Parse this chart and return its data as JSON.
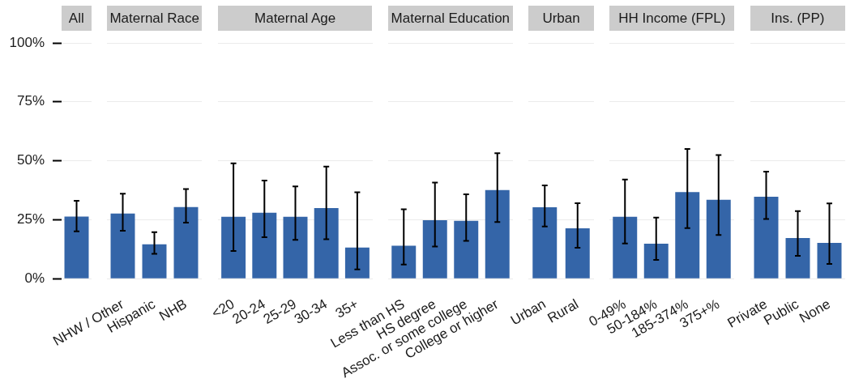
{
  "chart_data": [
    {
      "type": "bar",
      "title": "All",
      "categories": [
        null
      ],
      "values": [
        26.2
      ],
      "errors": [
        [
          20.0,
          33.0
        ]
      ],
      "color": "#3465a8",
      "ylim": [
        0,
        100
      ],
      "yticks": [
        {
          "value": 0,
          "label": "0%"
        },
        {
          "value": 25,
          "label": "25%"
        },
        {
          "value": 50,
          "label": "50%"
        },
        {
          "value": 75,
          "label": "75%"
        },
        {
          "value": 100,
          "label": "100%"
        }
      ],
      "grid": "y",
      "legend": false
    },
    {
      "type": "bar",
      "title": "Maternal Race",
      "categories": [
        "NHW / Other",
        "Hispanic",
        "NHB"
      ],
      "values": [
        27.5,
        14.4,
        30.2
      ],
      "errors": [
        [
          20.3,
          36.0
        ],
        [
          10.5,
          19.7
        ],
        [
          23.7,
          38.0
        ]
      ],
      "color": "#3465a8",
      "ylim": [
        0,
        100
      ],
      "yticks": [
        0,
        25,
        50,
        75,
        100
      ],
      "grid": "y",
      "legend": false,
      "tick_labels": "x"
    },
    {
      "type": "bar",
      "title": "Maternal Age",
      "categories": [
        "<20",
        "20-24",
        "25-29",
        "30-34",
        "35+"
      ],
      "values": [
        26.1,
        27.8,
        26.1,
        29.8,
        13.0
      ],
      "errors": [
        [
          11.7,
          48.9
        ],
        [
          17.5,
          41.6
        ],
        [
          16.4,
          39.1
        ],
        [
          16.7,
          47.5
        ],
        [
          3.9,
          36.6
        ]
      ],
      "color": "#3465a8",
      "ylim": [
        0,
        100
      ],
      "yticks": [
        0,
        25,
        50,
        75,
        100
      ],
      "grid": "y",
      "legend": false,
      "tick_labels": "x"
    },
    {
      "type": "bar",
      "title": "Maternal Education",
      "categories": [
        "Less than HS",
        "HS degree",
        "Assoc. or some college",
        "College or higher"
      ],
      "values": [
        13.8,
        24.6,
        24.4,
        37.4
      ],
      "errors": [
        [
          5.9,
          29.4
        ],
        [
          13.6,
          40.7
        ],
        [
          16.0,
          35.7
        ],
        [
          24.0,
          53.2
        ]
      ],
      "color": "#3465a8",
      "ylim": [
        0,
        100
      ],
      "yticks": [
        0,
        25,
        50,
        75,
        100
      ],
      "grid": "y",
      "legend": false,
      "tick_labels": "x"
    },
    {
      "type": "bar",
      "title": "Urban",
      "categories": [
        "Urban",
        "Rural"
      ],
      "values": [
        30.1,
        21.2
      ],
      "errors": [
        [
          22.1,
          39.5
        ],
        [
          13.1,
          32.0
        ]
      ],
      "color": "#3465a8",
      "ylim": [
        0,
        100
      ],
      "yticks": [
        0,
        25,
        50,
        75,
        100
      ],
      "grid": "y",
      "legend": false,
      "tick_labels": "x"
    },
    {
      "type": "bar",
      "title": "HH Income (FPL)",
      "categories": [
        "0-49%",
        "50-184%",
        "185-374%",
        "375+%"
      ],
      "values": [
        26.1,
        14.7,
        36.6,
        33.3
      ],
      "errors": [
        [
          14.9,
          42.0
        ],
        [
          7.9,
          25.9
        ],
        [
          21.4,
          55.0
        ],
        [
          18.5,
          52.4
        ]
      ],
      "color": "#3465a8",
      "ylim": [
        0,
        100
      ],
      "yticks": [
        0,
        25,
        50,
        75,
        100
      ],
      "grid": "y",
      "legend": false,
      "tick_labels": "x"
    },
    {
      "type": "bar",
      "title": "Ins. (PP)",
      "categories": [
        "Private",
        "Public",
        "None"
      ],
      "values": [
        34.6,
        17.1,
        15.0
      ],
      "errors": [
        [
          25.3,
          45.4
        ],
        [
          9.6,
          28.6
        ],
        [
          6.2,
          31.9
        ]
      ],
      "color": "#3465a8",
      "ylim": [
        0,
        100
      ],
      "yticks": [
        0,
        25,
        50,
        75,
        100
      ],
      "grid": "y",
      "legend": false,
      "tick_labels": "x"
    }
  ]
}
